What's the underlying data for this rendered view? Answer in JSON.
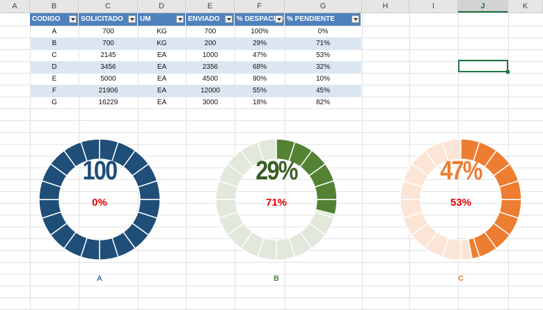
{
  "columns": [
    "A",
    "B",
    "C",
    "D",
    "E",
    "F",
    "G",
    "H",
    "I",
    "J",
    "K"
  ],
  "selected_column": "J",
  "table": {
    "headers": [
      "CODIGO",
      "SOLICITADO",
      "UM",
      "ENVIADO",
      "% DESPACHO",
      "% PENDIENTE"
    ],
    "rows": [
      [
        "A",
        "700",
        "KG",
        "700",
        "100%",
        "0%"
      ],
      [
        "B",
        "700",
        "KG",
        "200",
        "29%",
        "71%"
      ],
      [
        "C",
        "2145",
        "EA",
        "1000",
        "47%",
        "53%"
      ],
      [
        "D",
        "3456",
        "EA",
        "2356",
        "68%",
        "32%"
      ],
      [
        "E",
        "5000",
        "EA",
        "4500",
        "90%",
        "10%"
      ],
      [
        "F",
        "21906",
        "EA",
        "12000",
        "55%",
        "45%"
      ],
      [
        "G",
        "16229",
        "EA",
        "3000",
        "18%",
        "82%"
      ]
    ]
  },
  "donuts": [
    {
      "label": "A",
      "big": "100",
      "small": "0%",
      "value": 1.0,
      "fill": "#1f4e79",
      "bg": "#1f4e79",
      "bigColor": "#1f4e79",
      "labelColor": "#2e75b6"
    },
    {
      "label": "B",
      "big": "29%",
      "small": "71%",
      "value": 0.29,
      "fill": "#548235",
      "bg": "#e2e8dc",
      "bigColor": "#3a5e24",
      "labelColor": "#548235"
    },
    {
      "label": "C",
      "big": "47%",
      "small": "53%",
      "value": 0.47,
      "fill": "#ed7d31",
      "bg": "#fbe5d6",
      "bigColor": "#ed7d31",
      "labelColor": "#ed7d31"
    }
  ]
}
